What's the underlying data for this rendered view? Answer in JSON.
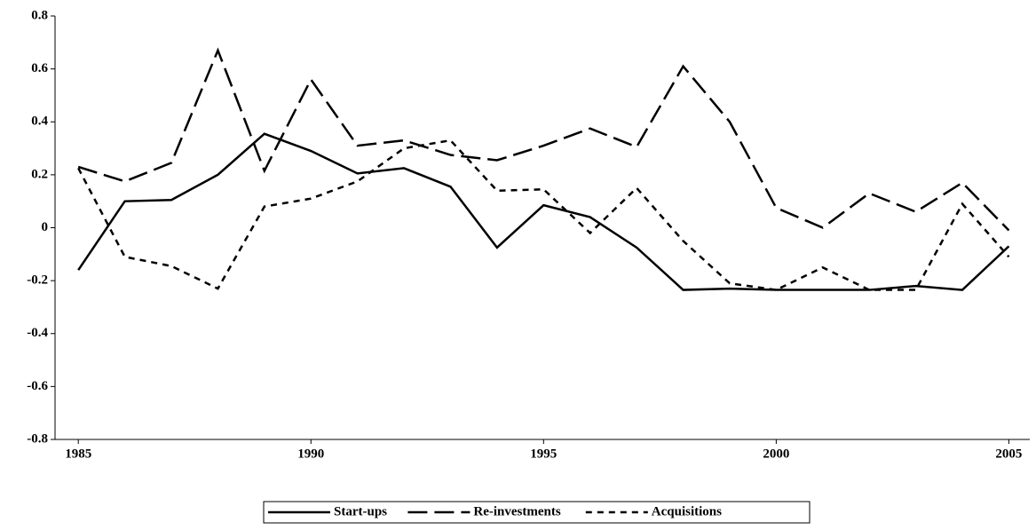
{
  "chart_data": {
    "type": "line",
    "x": [
      1985,
      1986,
      1987,
      1988,
      1989,
      1990,
      1991,
      1992,
      1993,
      1994,
      1995,
      1996,
      1997,
      1998,
      1999,
      2000,
      2001,
      2002,
      2003,
      2004,
      2005
    ],
    "series": [
      {
        "name": "Start-ups",
        "color": "#000000",
        "style": "solid",
        "values": [
          -0.16,
          0.1,
          0.105,
          0.2,
          0.355,
          0.29,
          0.205,
          0.225,
          0.155,
          -0.075,
          0.085,
          0.04,
          -0.075,
          -0.235,
          -0.23,
          -0.235,
          -0.235,
          -0.235,
          -0.22,
          -0.235,
          -0.07
        ]
      },
      {
        "name": "Re-investments",
        "color": "#000000",
        "style": "dashed",
        "values": [
          0.23,
          0.175,
          0.245,
          0.67,
          0.215,
          0.56,
          0.31,
          0.33,
          0.275,
          0.255,
          0.31,
          0.375,
          0.305,
          0.61,
          0.4,
          0.075,
          0.0,
          0.13,
          0.06,
          0.17,
          -0.01
        ]
      },
      {
        "name": "Acquisitions",
        "color": "#000000",
        "style": "dotted",
        "values": [
          0.225,
          -0.11,
          -0.145,
          -0.23,
          0.08,
          0.11,
          0.175,
          0.3,
          0.33,
          0.14,
          0.145,
          -0.02,
          0.15,
          -0.05,
          -0.21,
          -0.235,
          -0.15,
          -0.235,
          -0.235,
          0.09,
          -0.11
        ]
      }
    ],
    "xlim": [
      1984.5,
      2005.45
    ],
    "xticks": [
      1985,
      1990,
      1995,
      2000,
      2005
    ],
    "ylim": [
      -0.8,
      0.8
    ],
    "yticks": [
      -0.8,
      -0.6,
      -0.4,
      -0.2,
      0,
      0.2,
      0.4,
      0.6,
      0.8
    ],
    "grid": false,
    "legend": "bottom"
  }
}
